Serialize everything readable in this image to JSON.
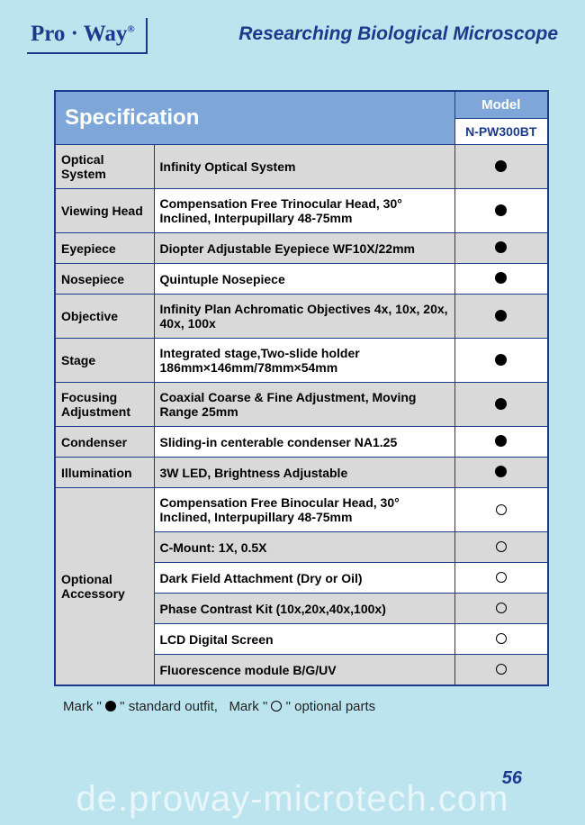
{
  "header": {
    "logo_text": "Pro · Way",
    "reg": "®",
    "title": "Researching Biological Microscope"
  },
  "table": {
    "spec_label": "Specification",
    "model_label": "Model",
    "model_value": "N-PW300BT",
    "rows": [
      {
        "label": "Optical System",
        "desc": "Infinity Optical System",
        "mark": "filled",
        "gray": true
      },
      {
        "label": "Viewing Head",
        "desc": "Compensation Free Trinocular Head, 30° Inclined, Interpupillary 48-75mm",
        "mark": "filled",
        "gray": false
      },
      {
        "label": "Eyepiece",
        "desc": "Diopter Adjustable Eyepiece WF10X/22mm",
        "mark": "filled",
        "gray": true
      },
      {
        "label": "Nosepiece",
        "desc": "Quintuple Nosepiece",
        "mark": "filled",
        "gray": false
      },
      {
        "label": "Objective",
        "desc": "Infinity Plan Achromatic Objectives 4x, 10x, 20x, 40x, 100x",
        "mark": "filled",
        "gray": true
      },
      {
        "label": "Stage",
        "desc": "Integrated stage,Two-slide holder 186mm×146mm/78mm×54mm",
        "mark": "filled",
        "gray": false
      },
      {
        "label": "Focusing Adjustment",
        "desc": "Coaxial Coarse & Fine Adjustment, Moving Range 25mm",
        "mark": "filled",
        "gray": true
      },
      {
        "label": "Condenser",
        "desc": "Sliding-in centerable condenser NA1.25",
        "mark": "filled",
        "gray": false
      },
      {
        "label": "Illumination",
        "desc": "3W LED, Brightness Adjustable",
        "mark": "filled",
        "gray": true
      }
    ],
    "optional_label": "Optional Accessory",
    "optional_rows": [
      {
        "desc": "Compensation Free Binocular Head, 30° Inclined, Interpupillary 48-75mm",
        "mark": "open",
        "gray": false
      },
      {
        "desc": "C-Mount: 1X, 0.5X",
        "mark": "open",
        "gray": true
      },
      {
        "desc": "Dark Field Attachment (Dry or Oil)",
        "mark": "open",
        "gray": false
      },
      {
        "desc": "Phase Contrast Kit (10x,20x,40x,100x)",
        "mark": "open",
        "gray": true
      },
      {
        "desc": "LCD Digital Screen",
        "mark": "open",
        "gray": false
      },
      {
        "desc": "Fluorescence module B/G/UV",
        "mark": "open",
        "gray": true
      }
    ]
  },
  "legend": {
    "std": "standard outfit,",
    "opt": "optional parts",
    "mark_word": "Mark"
  },
  "page_number": "56",
  "watermark": "de.proway-microtech.com"
}
